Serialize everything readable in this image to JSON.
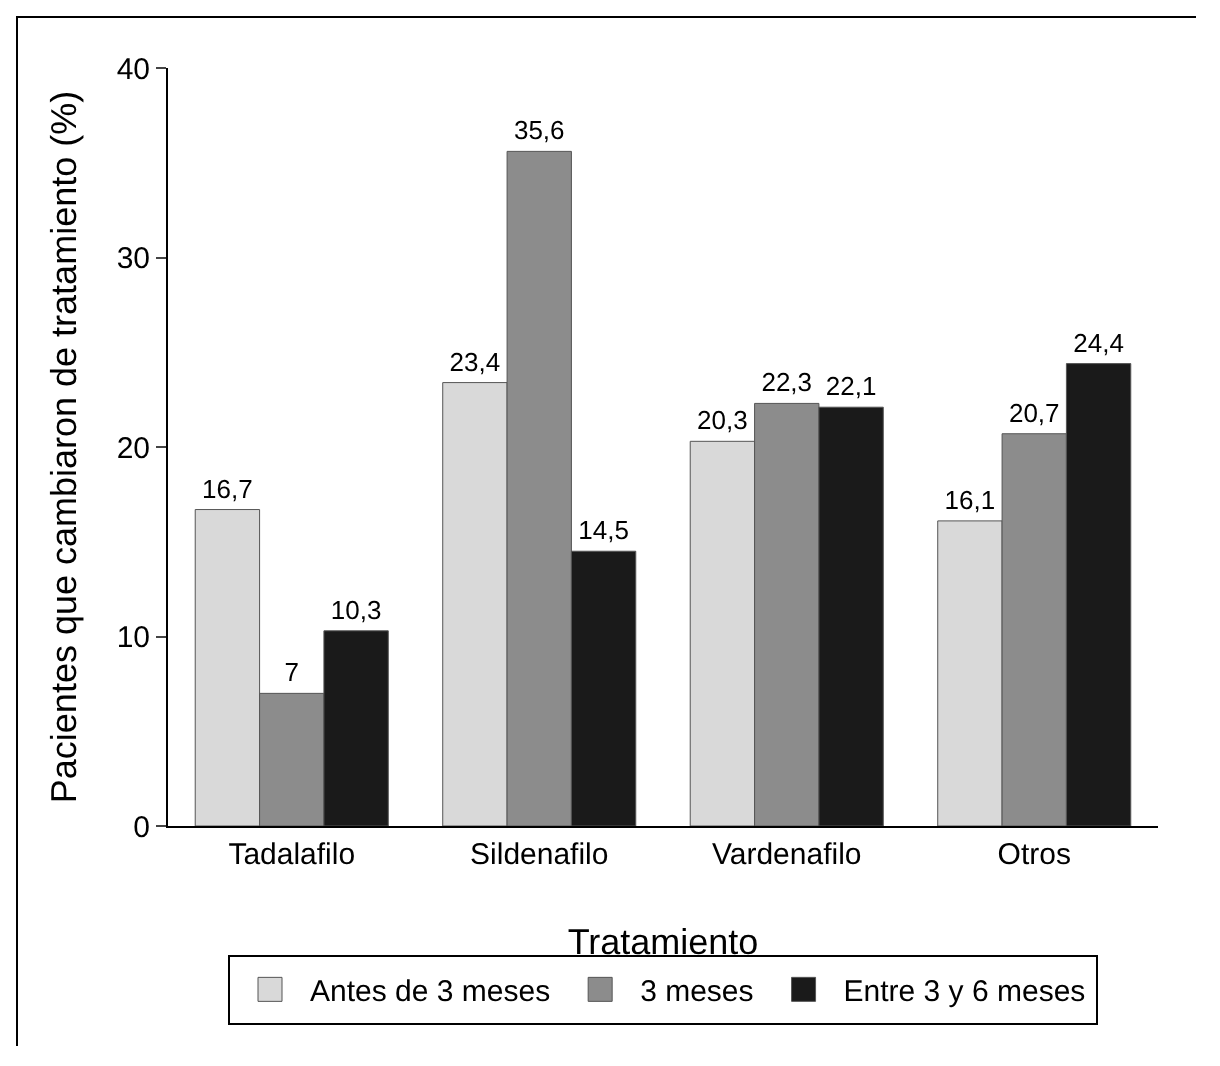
{
  "chart_data": {
    "type": "bar",
    "xlabel": "Tratamiento",
    "ylabel": "Pacientes que cambiaron de tratamiento (%)",
    "categories": [
      "Tadalafilo",
      "Sildenafilo",
      "Vardenafilo",
      "Otros"
    ],
    "series": [
      {
        "name": "Antes de 3 meses",
        "color": "#d9d9d9",
        "values": [
          16.7,
          23.4,
          20.3,
          16.1
        ],
        "value_labels": [
          "16,7",
          "23,4",
          "20,3",
          "16,1"
        ]
      },
      {
        "name": "3 meses",
        "color": "#8c8c8c",
        "values": [
          7,
          35.6,
          22.3,
          20.7
        ],
        "value_labels": [
          "7",
          "35,6",
          "22,3",
          "20,7"
        ]
      },
      {
        "name": "Entre 3 y 6 meses",
        "color": "#1a1a1a",
        "values": [
          10.3,
          14.5,
          22.1,
          24.4
        ],
        "value_labels": [
          "10,3",
          "14,5",
          "22,1",
          "24,4"
        ]
      }
    ],
    "ylim": [
      0,
      40
    ],
    "yticks": [
      0,
      10,
      20,
      30,
      40
    ],
    "grid": false,
    "legend": "bottom"
  }
}
